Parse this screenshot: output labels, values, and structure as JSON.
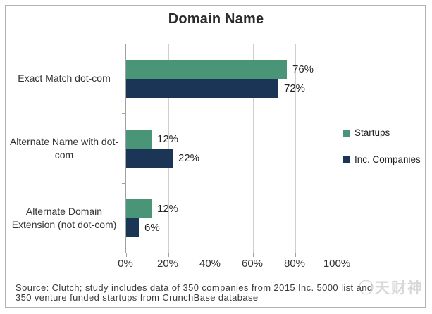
{
  "title": "Domain Name",
  "colors": {
    "startups": "#4a9478",
    "inc_companies": "#1b3557",
    "gridline": "#cfcfcf",
    "axis": "#a0a0a0",
    "frame_border": "#b3b3b3"
  },
  "chart_data": {
    "type": "bar",
    "orientation": "horizontal",
    "title": "Domain Name",
    "categories": [
      "Exact Match dot-com",
      "Alternate Name with dot-com",
      "Alternate Domain Extension (not dot-com)"
    ],
    "series": [
      {
        "name": "Startups",
        "color": "#4a9478",
        "values": [
          76,
          12,
          12
        ],
        "labels": [
          "76%",
          "12%",
          "12%"
        ]
      },
      {
        "name": "Inc. Companies",
        "color": "#1b3557",
        "values": [
          72,
          22,
          6
        ],
        "labels": [
          "72%",
          "22%",
          "6%"
        ]
      }
    ],
    "x_ticks": [
      "0%",
      "20%",
      "40%",
      "60%",
      "80%",
      "100%"
    ],
    "xlim": [
      0,
      100
    ],
    "grid": "vertical",
    "legend_position": "right"
  },
  "legend": {
    "items": [
      {
        "label": "Startups",
        "color": "#4a9478"
      },
      {
        "label": "Inc. Companies",
        "color": "#1b3557"
      }
    ]
  },
  "source": {
    "line1": "Source: Clutch; study includes data of 350 companies from 2015 Inc. 5000 list and",
    "line2": "350 venture funded startups from CrunchBase database"
  },
  "watermark": "◯天财神"
}
